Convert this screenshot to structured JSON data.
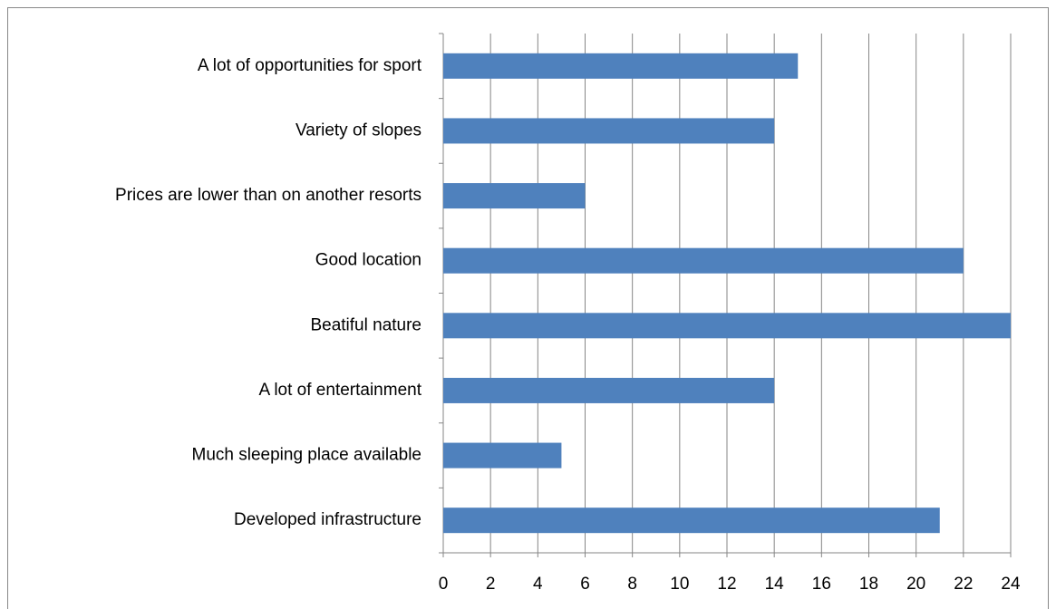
{
  "chart_data": {
    "type": "bar",
    "orientation": "horizontal",
    "categories": [
      "A lot of opportunities for sport",
      "Variety of slopes",
      "Prices are lower than on another resorts",
      "Good location",
      "Beatiful nature",
      "A lot of entertainment",
      "Much sleeping place available",
      "Developed infrastructure"
    ],
    "values": [
      15,
      14,
      6,
      22,
      24,
      14,
      5,
      21
    ],
    "color": "#4f81bd",
    "xlim": [
      0,
      24
    ],
    "xticks": [
      0,
      2,
      4,
      6,
      8,
      10,
      12,
      14,
      16,
      18,
      20,
      22,
      24
    ],
    "grid": true
  }
}
